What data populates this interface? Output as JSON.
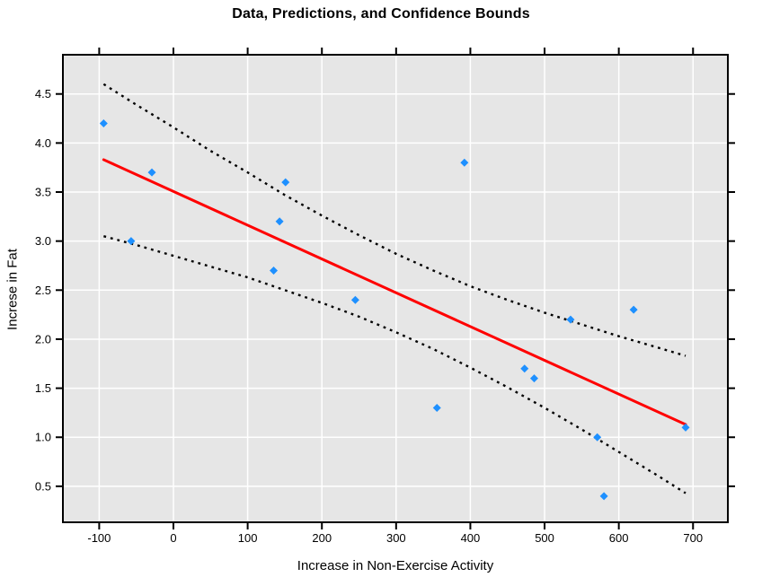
{
  "chart_data": {
    "type": "scatter",
    "title": "Data, Predictions, and Confidence Bounds",
    "xlabel": "Increase in Non-Exercise Activity",
    "ylabel": "Increse in Fat",
    "x_ticks": [
      -100,
      0,
      100,
      200,
      300,
      400,
      500,
      600,
      700
    ],
    "y_ticks": [
      0.5,
      1.0,
      1.5,
      2.0,
      2.5,
      3.0,
      3.5,
      4.0,
      4.5
    ],
    "xlim": [
      -148.9,
      746.9
    ],
    "ylim": [
      0.133,
      4.9
    ],
    "grid": true,
    "legend": "none",
    "points": [
      {
        "x": -94,
        "y": 4.2
      },
      {
        "x": -57,
        "y": 3.0
      },
      {
        "x": -29,
        "y": 3.7
      },
      {
        "x": 135,
        "y": 2.7
      },
      {
        "x": 143,
        "y": 3.2
      },
      {
        "x": 151,
        "y": 3.6
      },
      {
        "x": 245,
        "y": 2.4
      },
      {
        "x": 355,
        "y": 1.3
      },
      {
        "x": 392,
        "y": 3.8
      },
      {
        "x": 473,
        "y": 1.7
      },
      {
        "x": 486,
        "y": 1.6
      },
      {
        "x": 535,
        "y": 2.2
      },
      {
        "x": 571,
        "y": 1.0
      },
      {
        "x": 580,
        "y": 0.4
      },
      {
        "x": 620,
        "y": 2.3
      },
      {
        "x": 690,
        "y": 1.1
      }
    ],
    "prediction_line": {
      "style": "solid",
      "x": [
        -94,
        690
      ],
      "y": [
        3.83,
        1.13
      ]
    },
    "confidence_bounds": {
      "style": "dotted",
      "x": [
        -94,
        -50,
        0,
        50,
        100,
        150,
        200,
        250,
        300,
        350,
        400,
        450,
        500,
        550,
        600,
        650,
        690
      ],
      "upper": [
        4.6,
        4.39,
        4.16,
        3.92,
        3.7,
        3.47,
        3.26,
        3.06,
        2.87,
        2.7,
        2.54,
        2.4,
        2.27,
        2.15,
        2.03,
        1.92,
        1.83
      ],
      "lower": [
        3.05,
        2.96,
        2.85,
        2.74,
        2.63,
        2.5,
        2.37,
        2.23,
        2.07,
        1.9,
        1.71,
        1.51,
        1.3,
        1.08,
        0.85,
        0.62,
        0.43
      ]
    },
    "colors": {
      "point": "#1E90FF",
      "prediction_line": "#FF0000",
      "confidence_bounds": "#000000",
      "plot_bg": "#E6E6E6",
      "gridline": "#FFFFFF",
      "axis": "#000000"
    }
  }
}
